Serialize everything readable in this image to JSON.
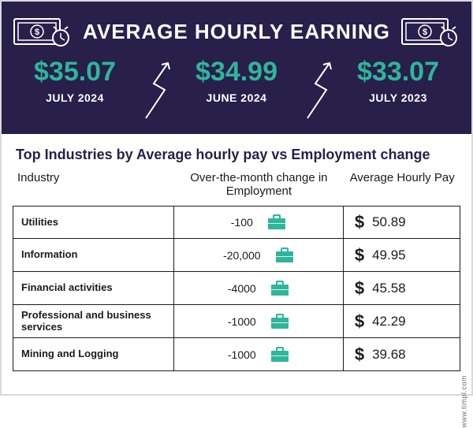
{
  "colors": {
    "hero_bg": "#281f4b",
    "hero_title": "#ffffff",
    "stat_value": "#2fb59a",
    "stat_period": "#ffffff",
    "zig": "#ffffff",
    "section_title": "#281f4b",
    "table_border": "#1b1b1b",
    "briefcase": "#2fb59a",
    "text": "#1b1b1b"
  },
  "hero": {
    "title": "AVERAGE HOURLY EARNING",
    "stats": [
      {
        "value": "$35.07",
        "period": "JULY 2024"
      },
      {
        "value": "$34.99",
        "period": "JUNE 2024"
      },
      {
        "value": "$33.07",
        "period": "JULY 2023"
      }
    ]
  },
  "section_title": "Top Industries by Average hourly pay vs Employment change",
  "table": {
    "headers": {
      "industry": "Industry",
      "change": "Over-the-month change in Employment",
      "pay": "Average Hourly Pay"
    },
    "rows": [
      {
        "industry": "Utilities",
        "change": "-100",
        "pay": "50.89"
      },
      {
        "industry": "Information",
        "change": "-20,000",
        "pay": "49.95"
      },
      {
        "industry": "Financial activities",
        "change": "-4000",
        "pay": "45.58"
      },
      {
        "industry": "Professional and business services",
        "change": "-1000",
        "pay": "42.29"
      },
      {
        "industry": "Mining and Logging",
        "change": "-1000",
        "pay": "39.68"
      }
    ]
  },
  "source": "www.timpl.com"
}
